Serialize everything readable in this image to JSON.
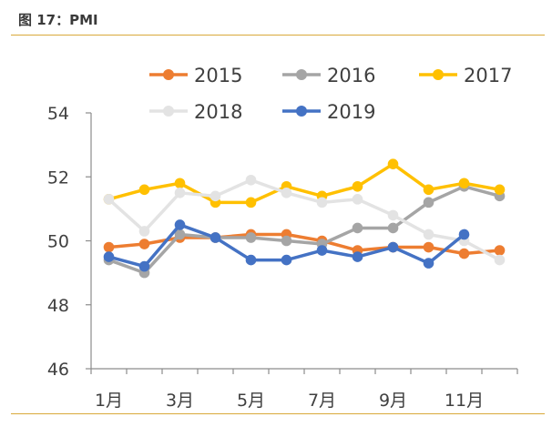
{
  "figure_title": "图 17：PMI",
  "colors": {
    "rule": "#d9a93a",
    "axis": "#8c8c8c"
  },
  "chart_data": {
    "type": "line",
    "title": "",
    "xlabel": "",
    "ylabel": "",
    "ylim": [
      46,
      54
    ],
    "yticks": [
      "46",
      "48",
      "50",
      "52",
      "54"
    ],
    "x": [
      1,
      2,
      3,
      4,
      5,
      6,
      7,
      8,
      9,
      10,
      11,
      12
    ],
    "xtick_labels": [
      "1月",
      "3月",
      "5月",
      "7月",
      "9月",
      "11月"
    ],
    "grid": false,
    "legend_position": "top",
    "series": [
      {
        "name": "2015",
        "color": "#ed7d31",
        "values": [
          49.8,
          49.9,
          50.1,
          50.1,
          50.2,
          50.2,
          50.0,
          49.7,
          49.8,
          49.8,
          49.6,
          49.7
        ]
      },
      {
        "name": "2016",
        "color": "#a5a5a5",
        "values": [
          49.4,
          49.0,
          50.2,
          50.1,
          50.1,
          50.0,
          49.9,
          50.4,
          50.4,
          51.2,
          51.7,
          51.4
        ]
      },
      {
        "name": "2017",
        "color": "#ffc000",
        "values": [
          51.3,
          51.6,
          51.8,
          51.2,
          51.2,
          51.7,
          51.4,
          51.7,
          52.4,
          51.6,
          51.8,
          51.6
        ]
      },
      {
        "name": "2018",
        "color": "#e3e3e3",
        "values": [
          51.3,
          50.3,
          51.5,
          51.4,
          51.9,
          51.5,
          51.2,
          51.3,
          50.8,
          50.2,
          50.0,
          49.4
        ]
      },
      {
        "name": "2019",
        "color": "#4472c4",
        "values": [
          49.5,
          49.2,
          50.5,
          50.1,
          49.4,
          49.4,
          49.7,
          49.5,
          49.8,
          49.3,
          50.2,
          null
        ]
      }
    ]
  }
}
